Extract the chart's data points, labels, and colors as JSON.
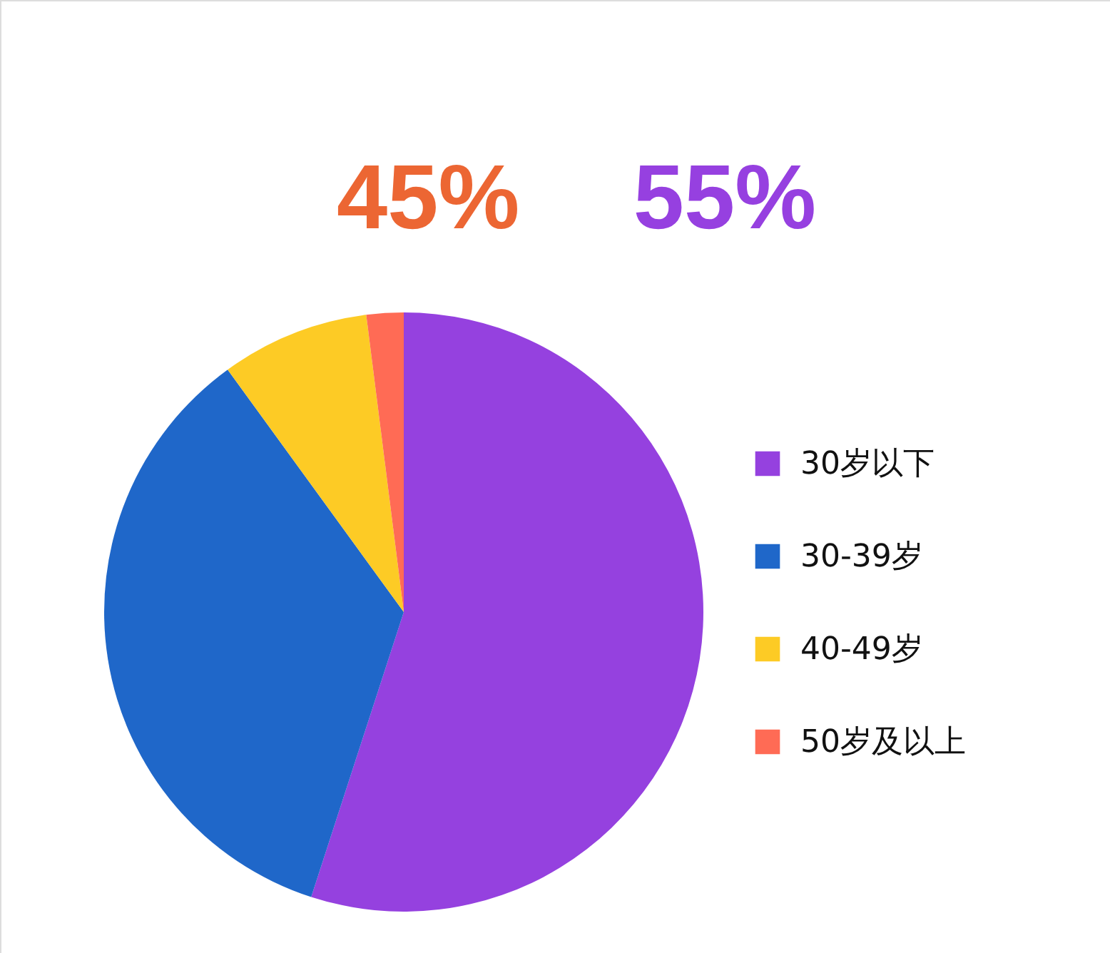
{
  "chart_data": {
    "type": "pie",
    "categories": [
      "30岁以下",
      "30-39岁",
      "40-49岁",
      "50岁及以上"
    ],
    "values": [
      55,
      35,
      8,
      2
    ],
    "colors": [
      "#9541df",
      "#1f67c9",
      "#fdcb25",
      "#ff6b55"
    ],
    "legend": "right",
    "annotations": [
      "45%",
      "55%"
    ]
  }
}
